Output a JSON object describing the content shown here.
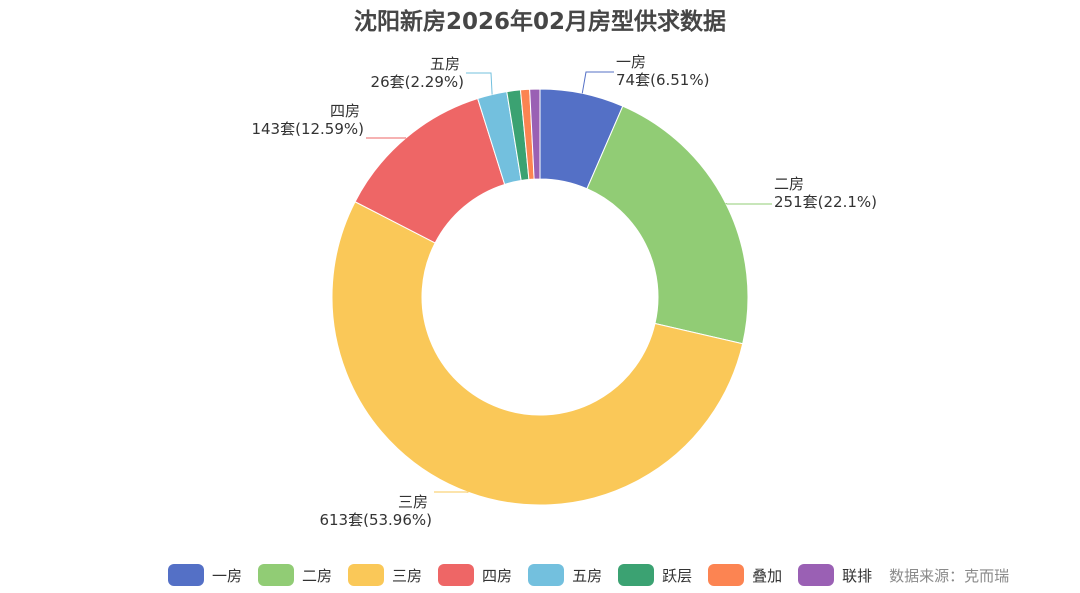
{
  "chart_data": {
    "type": "pie",
    "title": "沈阳新房2026年02月房型供求数据",
    "legend_position": "bottom",
    "source": "数据来源：克而瑞",
    "slices": [
      {
        "name": "一房",
        "value": 74,
        "pct": "6.51%",
        "label": "74套(6.51%)",
        "color": "#5470c6"
      },
      {
        "name": "二房",
        "value": 251,
        "pct": "22.1%",
        "label": "251套(22.1%)",
        "color": "#91cc75"
      },
      {
        "name": "三房",
        "value": 613,
        "pct": "53.96%",
        "label": "613套(53.96%)",
        "color": "#fac858"
      },
      {
        "name": "四房",
        "value": 143,
        "pct": "12.59%",
        "label": "143套(12.59%)",
        "color": "#ee6666"
      },
      {
        "name": "五房",
        "value": 26,
        "pct": "2.29%",
        "label": "26套(2.29%)",
        "color": "#73c0de"
      },
      {
        "name": "跃层",
        "value": 12,
        "color": "#3ba272"
      },
      {
        "name": "叠加",
        "value": 8,
        "color": "#fc8452"
      },
      {
        "name": "联排",
        "value": 9,
        "color": "#9a60b4"
      }
    ]
  }
}
